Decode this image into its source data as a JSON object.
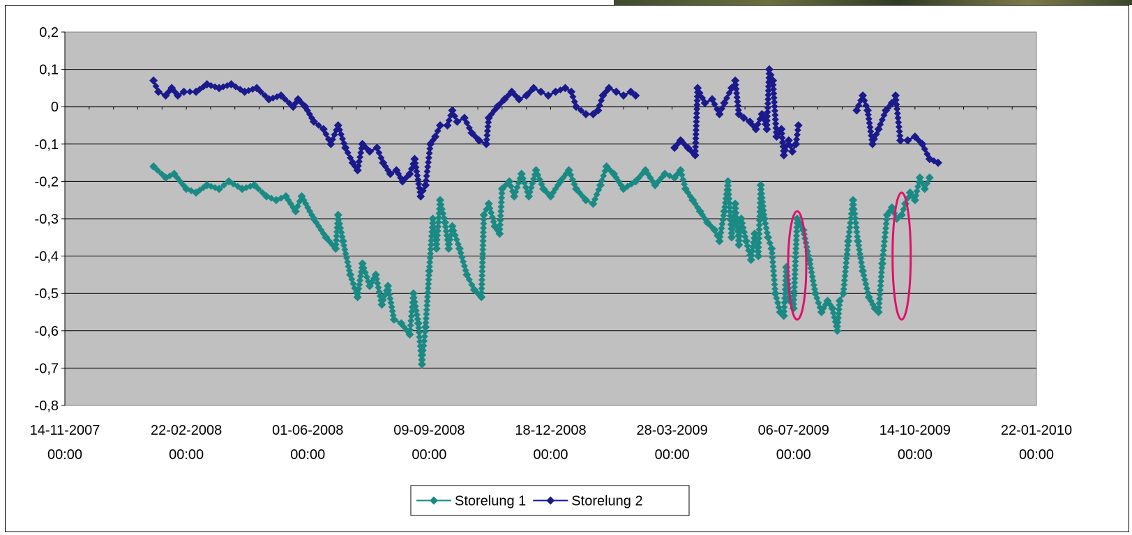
{
  "chart_data": {
    "type": "line",
    "title": "",
    "xlabel": "",
    "ylabel": "",
    "ylim": [
      -0.8,
      0.2
    ],
    "yticks": [
      "0,2",
      "0,1",
      "0",
      "-0,1",
      "-0,2",
      "-0,3",
      "-0,4",
      "-0,5",
      "-0,6",
      "-0,7",
      "-0,8"
    ],
    "xlim": [
      "2007-11-14",
      "2010-01-22"
    ],
    "xticks": [
      {
        "date": "14-11-2007",
        "time": "00:00"
      },
      {
        "date": "22-02-2008",
        "time": "00:00"
      },
      {
        "date": "01-06-2008",
        "time": "00:00"
      },
      {
        "date": "09-09-2008",
        "time": "00:00"
      },
      {
        "date": "18-12-2008",
        "time": "00:00"
      },
      {
        "date": "28-03-2009",
        "time": "00:00"
      },
      {
        "date": "06-07-2009",
        "time": "00:00"
      },
      {
        "date": "14-10-2009",
        "time": "00:00"
      },
      {
        "date": "22-01-2010",
        "time": "00:00"
      }
    ],
    "grid": true,
    "legend_position": "bottom",
    "plot_background": "#c0c0c0",
    "series": [
      {
        "name": "Storelung 1",
        "color": "#1a8a84",
        "marker": "diamond",
        "points": [
          [
            "2008-01-26",
            -0.16
          ],
          [
            "2008-02-05",
            -0.19
          ],
          [
            "2008-02-12",
            -0.18
          ],
          [
            "2008-02-22",
            -0.22
          ],
          [
            "2008-03-01",
            -0.23
          ],
          [
            "2008-03-10",
            -0.21
          ],
          [
            "2008-03-20",
            -0.22
          ],
          [
            "2008-03-28",
            -0.2
          ],
          [
            "2008-04-08",
            -0.22
          ],
          [
            "2008-04-18",
            -0.21
          ],
          [
            "2008-04-28",
            -0.24
          ],
          [
            "2008-05-06",
            -0.25
          ],
          [
            "2008-05-14",
            -0.24
          ],
          [
            "2008-05-22",
            -0.28
          ],
          [
            "2008-05-27",
            -0.24
          ],
          [
            "2008-06-06",
            -0.3
          ],
          [
            "2008-06-16",
            -0.35
          ],
          [
            "2008-06-24",
            -0.38
          ],
          [
            "2008-06-26",
            -0.29
          ],
          [
            "2008-06-30",
            -0.36
          ],
          [
            "2008-07-06",
            -0.45
          ],
          [
            "2008-07-12",
            -0.51
          ],
          [
            "2008-07-16",
            -0.42
          ],
          [
            "2008-07-22",
            -0.48
          ],
          [
            "2008-07-27",
            -0.45
          ],
          [
            "2008-08-01",
            -0.53
          ],
          [
            "2008-08-06",
            -0.48
          ],
          [
            "2008-08-11",
            -0.57
          ],
          [
            "2008-08-17",
            -0.58
          ],
          [
            "2008-08-24",
            -0.61
          ],
          [
            "2008-08-27",
            -0.5
          ],
          [
            "2008-08-31",
            -0.58
          ],
          [
            "2008-09-03",
            -0.69
          ],
          [
            "2008-09-06",
            -0.59
          ],
          [
            "2008-09-09",
            -0.44
          ],
          [
            "2008-09-12",
            -0.3
          ],
          [
            "2008-09-15",
            -0.38
          ],
          [
            "2008-09-18",
            -0.25
          ],
          [
            "2008-09-22",
            -0.31
          ],
          [
            "2008-09-25",
            -0.38
          ],
          [
            "2008-09-28",
            -0.32
          ],
          [
            "2008-10-04",
            -0.38
          ],
          [
            "2008-10-10",
            -0.45
          ],
          [
            "2008-10-16",
            -0.49
          ],
          [
            "2008-10-22",
            -0.51
          ],
          [
            "2008-10-24",
            -0.29
          ],
          [
            "2008-10-28",
            -0.26
          ],
          [
            "2008-11-02",
            -0.32
          ],
          [
            "2008-11-06",
            -0.34
          ],
          [
            "2008-11-08",
            -0.22
          ],
          [
            "2008-11-14",
            -0.2
          ],
          [
            "2008-11-18",
            -0.24
          ],
          [
            "2008-11-24",
            -0.18
          ],
          [
            "2008-11-30",
            -0.24
          ],
          [
            "2008-12-06",
            -0.17
          ],
          [
            "2008-12-12",
            -0.22
          ],
          [
            "2008-12-18",
            -0.24
          ],
          [
            "2008-12-26",
            -0.2
          ],
          [
            "2009-01-02",
            -0.17
          ],
          [
            "2009-01-08",
            -0.22
          ],
          [
            "2009-01-16",
            -0.25
          ],
          [
            "2009-01-22",
            -0.26
          ],
          [
            "2009-01-28",
            -0.21
          ],
          [
            "2009-02-02",
            -0.16
          ],
          [
            "2009-02-08",
            -0.18
          ],
          [
            "2009-02-16",
            -0.22
          ],
          [
            "2009-02-26",
            -0.2
          ],
          [
            "2009-03-06",
            -0.17
          ],
          [
            "2009-03-14",
            -0.21
          ],
          [
            "2009-03-22",
            -0.18
          ],
          [
            "2009-03-30",
            -0.19
          ],
          [
            "2009-04-04",
            -0.17
          ],
          [
            "2009-04-08",
            -0.22
          ],
          [
            "2009-04-14",
            -0.25
          ],
          [
            "2009-04-20",
            -0.28
          ],
          [
            "2009-04-26",
            -0.31
          ],
          [
            "2009-05-02",
            -0.33
          ],
          [
            "2009-05-06",
            -0.36
          ],
          [
            "2009-05-10",
            -0.28
          ],
          [
            "2009-05-13",
            -0.2
          ],
          [
            "2009-05-16",
            -0.35
          ],
          [
            "2009-05-19",
            -0.26
          ],
          [
            "2009-05-22",
            -0.37
          ],
          [
            "2009-05-24",
            -0.3
          ],
          [
            "2009-05-28",
            -0.36
          ],
          [
            "2009-06-01",
            -0.41
          ],
          [
            "2009-06-04",
            -0.34
          ],
          [
            "2009-06-07",
            -0.4
          ],
          [
            "2009-06-09",
            -0.21
          ],
          [
            "2009-06-12",
            -0.3
          ],
          [
            "2009-06-15",
            -0.35
          ],
          [
            "2009-06-18",
            -0.38
          ],
          [
            "2009-06-21",
            -0.5
          ],
          [
            "2009-06-25",
            -0.55
          ],
          [
            "2009-06-28",
            -0.56
          ],
          [
            "2009-06-30",
            -0.43
          ],
          [
            "2009-07-03",
            -0.52
          ],
          [
            "2009-07-06",
            -0.54
          ],
          [
            "2009-07-09",
            -0.3
          ],
          [
            "2009-07-14",
            -0.33
          ],
          [
            "2009-07-19",
            -0.41
          ],
          [
            "2009-07-24",
            -0.5
          ],
          [
            "2009-07-29",
            -0.55
          ],
          [
            "2009-08-03",
            -0.52
          ],
          [
            "2009-08-07",
            -0.54
          ],
          [
            "2009-08-11",
            -0.6
          ],
          [
            "2009-08-13",
            -0.52
          ],
          [
            "2009-08-16",
            -0.5
          ],
          [
            "2009-08-20",
            -0.36
          ],
          [
            "2009-08-24",
            -0.25
          ],
          [
            "2009-08-28",
            -0.36
          ],
          [
            "2009-09-01",
            -0.44
          ],
          [
            "2009-09-06",
            -0.51
          ],
          [
            "2009-09-11",
            -0.54
          ],
          [
            "2009-09-14",
            -0.55
          ],
          [
            "2009-09-17",
            -0.42
          ],
          [
            "2009-09-21",
            -0.29
          ],
          [
            "2009-09-25",
            -0.27
          ],
          [
            "2009-09-29",
            -0.3
          ],
          [
            "2009-10-03",
            -0.29
          ],
          [
            "2009-10-06",
            -0.26
          ],
          [
            "2009-10-10",
            -0.23
          ],
          [
            "2009-10-14",
            -0.25
          ],
          [
            "2009-10-18",
            -0.19
          ],
          [
            "2009-10-22",
            -0.22
          ],
          [
            "2009-10-26",
            -0.19
          ]
        ]
      },
      {
        "name": "Storelung 2",
        "color": "#1a1a8c",
        "marker": "diamond",
        "points": [
          [
            "2008-01-26",
            0.07
          ],
          [
            "2008-01-30",
            0.04
          ],
          [
            "2008-02-05",
            0.03
          ],
          [
            "2008-02-10",
            0.05
          ],
          [
            "2008-02-15",
            0.03
          ],
          [
            "2008-02-20",
            0.04
          ],
          [
            "2008-03-01",
            0.04
          ],
          [
            "2008-03-10",
            0.06
          ],
          [
            "2008-03-20",
            0.05
          ],
          [
            "2008-03-30",
            0.06
          ],
          [
            "2008-04-10",
            0.04
          ],
          [
            "2008-04-20",
            0.05
          ],
          [
            "2008-04-30",
            0.02
          ],
          [
            "2008-05-10",
            0.03
          ],
          [
            "2008-05-20",
            0.0
          ],
          [
            "2008-05-24",
            0.02
          ],
          [
            "2008-05-30",
            0.0
          ],
          [
            "2008-06-06",
            -0.04
          ],
          [
            "2008-06-14",
            -0.06
          ],
          [
            "2008-06-20",
            -0.1
          ],
          [
            "2008-06-26",
            -0.05
          ],
          [
            "2008-07-02",
            -0.11
          ],
          [
            "2008-07-08",
            -0.15
          ],
          [
            "2008-07-12",
            -0.17
          ],
          [
            "2008-07-16",
            -0.1
          ],
          [
            "2008-07-22",
            -0.12
          ],
          [
            "2008-07-28",
            -0.11
          ],
          [
            "2008-08-02",
            -0.15
          ],
          [
            "2008-08-08",
            -0.18
          ],
          [
            "2008-08-13",
            -0.17
          ],
          [
            "2008-08-18",
            -0.2
          ],
          [
            "2008-08-24",
            -0.18
          ],
          [
            "2008-08-28",
            -0.14
          ],
          [
            "2008-09-02",
            -0.24
          ],
          [
            "2008-09-06",
            -0.21
          ],
          [
            "2008-09-10",
            -0.1
          ],
          [
            "2008-09-14",
            -0.08
          ],
          [
            "2008-09-18",
            -0.05
          ],
          [
            "2008-09-24",
            -0.05
          ],
          [
            "2008-09-28",
            -0.01
          ],
          [
            "2008-10-02",
            -0.04
          ],
          [
            "2008-10-08",
            -0.03
          ],
          [
            "2008-10-14",
            -0.07
          ],
          [
            "2008-10-20",
            -0.09
          ],
          [
            "2008-10-26",
            -0.1
          ],
          [
            "2008-10-28",
            -0.03
          ],
          [
            "2008-11-04",
            0.0
          ],
          [
            "2008-11-10",
            0.02
          ],
          [
            "2008-11-16",
            0.04
          ],
          [
            "2008-11-22",
            0.02
          ],
          [
            "2008-11-28",
            0.03
          ],
          [
            "2008-12-04",
            0.05
          ],
          [
            "2008-12-10",
            0.04
          ],
          [
            "2008-12-16",
            0.03
          ],
          [
            "2008-12-22",
            0.04
          ],
          [
            "2008-12-30",
            0.05
          ],
          [
            "2009-01-04",
            0.04
          ],
          [
            "2009-01-08",
            0.0
          ],
          [
            "2009-01-16",
            -0.02
          ],
          [
            "2009-01-22",
            -0.02
          ],
          [
            "2009-01-26",
            -0.01
          ],
          [
            "2009-01-30",
            0.03
          ],
          [
            "2009-02-04",
            0.05
          ],
          [
            "2009-02-10",
            0.04
          ],
          [
            "2009-02-16",
            0.03
          ],
          [
            "2009-02-22",
            0.04
          ],
          [
            "2009-02-26",
            0.03
          ],
          null,
          [
            "2009-03-30",
            -0.11
          ],
          [
            "2009-04-04",
            -0.09
          ],
          [
            "2009-04-10",
            -0.11
          ],
          [
            "2009-04-16",
            -0.13
          ],
          [
            "2009-04-18",
            0.05
          ],
          [
            "2009-04-24",
            0.01
          ],
          [
            "2009-04-30",
            0.02
          ],
          [
            "2009-05-06",
            -0.02
          ],
          [
            "2009-05-10",
            0.01
          ],
          [
            "2009-05-16",
            0.05
          ],
          [
            "2009-05-19",
            0.07
          ],
          [
            "2009-05-22",
            -0.02
          ],
          [
            "2009-05-26",
            -0.03
          ],
          [
            "2009-05-31",
            -0.04
          ],
          [
            "2009-06-05",
            -0.06
          ],
          [
            "2009-06-10",
            -0.02
          ],
          [
            "2009-06-14",
            -0.06
          ],
          [
            "2009-06-16",
            0.1
          ],
          [
            "2009-06-19",
            0.07
          ],
          [
            "2009-06-22",
            -0.08
          ],
          [
            "2009-06-26",
            -0.06
          ],
          [
            "2009-06-28",
            -0.13
          ],
          [
            "2009-07-02",
            -0.09
          ],
          [
            "2009-07-05",
            -0.12
          ],
          [
            "2009-07-08",
            -0.1
          ],
          [
            "2009-07-10",
            -0.05
          ],
          null,
          [
            "2009-08-27",
            -0.01
          ],
          [
            "2009-09-01",
            0.03
          ],
          [
            "2009-09-05",
            -0.01
          ],
          [
            "2009-09-09",
            -0.1
          ],
          [
            "2009-09-14",
            -0.06
          ],
          [
            "2009-09-20",
            -0.01
          ],
          [
            "2009-09-25",
            0.01
          ],
          [
            "2009-09-28",
            0.03
          ],
          [
            "2009-10-02",
            -0.09
          ],
          [
            "2009-10-08",
            -0.09
          ],
          [
            "2009-10-14",
            -0.08
          ],
          [
            "2009-10-20",
            -0.1
          ],
          [
            "2009-10-26",
            -0.14
          ],
          [
            "2009-11-02",
            -0.15
          ]
        ]
      }
    ],
    "annotations": [
      {
        "shape": "ellipse",
        "color": "#e0106a",
        "date": "2009-07-09",
        "y_top": -0.28,
        "y_bottom": -0.57
      },
      {
        "shape": "ellipse",
        "color": "#e0106a",
        "date": "2009-10-03",
        "y_top": -0.23,
        "y_bottom": -0.57
      }
    ]
  }
}
